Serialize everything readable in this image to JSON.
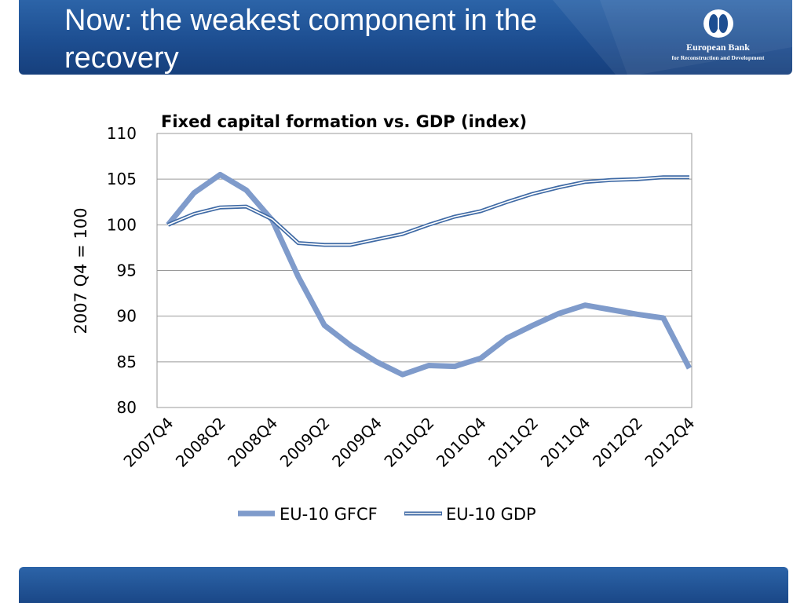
{
  "slide": {
    "title": "Now: the weakest component in the recovery"
  },
  "logo": {
    "name": "European Bank",
    "subtitle": "for Reconstruction and Development"
  },
  "colors": {
    "header_blue": "#1d4e91",
    "gfcf_line": "#7f9bcb",
    "gdp_line": "#3f6aa5"
  },
  "chart_data": {
    "type": "line",
    "title": "Fixed capital formation vs. GDP (index)",
    "xlabel": "",
    "ylabel": "2007 Q4 = 100",
    "ylim": [
      80,
      110
    ],
    "yticks": [
      80,
      85,
      90,
      95,
      100,
      105,
      110
    ],
    "grid": true,
    "legend_position": "bottom",
    "x": [
      "2007Q4",
      "2008Q1",
      "2008Q2",
      "2008Q3",
      "2008Q4",
      "2009Q1",
      "2009Q2",
      "2009Q3",
      "2009Q4",
      "2010Q1",
      "2010Q2",
      "2010Q3",
      "2010Q4",
      "2011Q1",
      "2011Q2",
      "2011Q3",
      "2011Q4",
      "2012Q1",
      "2012Q2",
      "2012Q3",
      "2012Q4"
    ],
    "x_tick_labels": [
      "2007Q4",
      "2008Q2",
      "2008Q4",
      "2009Q2",
      "2009Q4",
      "2010Q2",
      "2010Q4",
      "2011Q2",
      "2011Q4",
      "2012Q2",
      "2012Q4"
    ],
    "series": [
      {
        "name": "EU-10 GFCF",
        "style": "thick",
        "values": [
          100.0,
          103.5,
          105.5,
          103.8,
          100.5,
          94.3,
          89.0,
          86.8,
          85.0,
          83.6,
          84.6,
          84.5,
          85.4,
          87.6,
          89.0,
          90.3,
          91.2,
          90.7,
          90.2,
          89.8,
          84.3
        ]
      },
      {
        "name": "EU-10 GDP",
        "style": "double",
        "values": [
          100.0,
          101.2,
          101.9,
          102.0,
          100.6,
          98.0,
          97.8,
          97.8,
          98.4,
          99.0,
          100.0,
          100.9,
          101.5,
          102.5,
          103.4,
          104.1,
          104.7,
          104.9,
          105.0,
          105.2,
          105.2
        ]
      }
    ]
  }
}
